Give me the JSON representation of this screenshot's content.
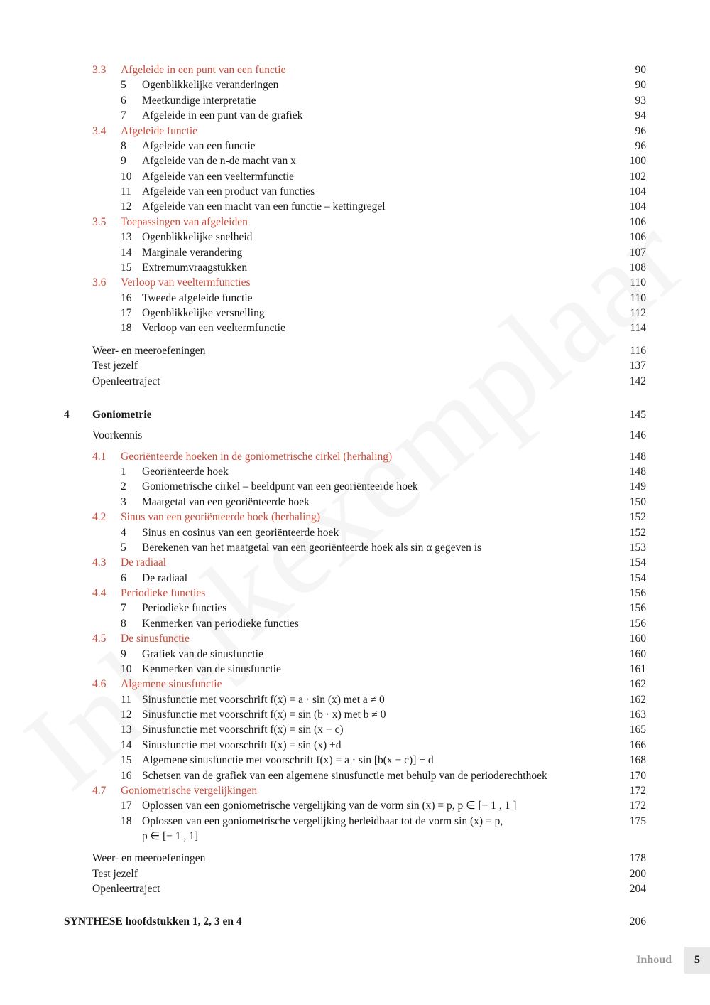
{
  "colors": {
    "section": "#c94b3a",
    "text": "#1a1a1a",
    "footer_label": "#999999",
    "footer_bg": "#e8e8e8",
    "watermark": "rgba(0,0,0,0.04)"
  },
  "watermark": "Inkijkexemplaar",
  "sections_a": [
    {
      "num": "3.3",
      "title": "Afgeleide in een punt van een functie",
      "page": "90",
      "subs": [
        {
          "n": "5",
          "t": "Ogenblikkelijke veranderingen",
          "p": "90"
        },
        {
          "n": "6",
          "t": "Meetkundige interpretatie",
          "p": "93"
        },
        {
          "n": "7",
          "t": "Afgeleide in een punt van de grafiek",
          "p": "94"
        }
      ]
    },
    {
      "num": "3.4",
      "title": "Afgeleide functie",
      "page": "96",
      "subs": [
        {
          "n": "8",
          "t": "Afgeleide van een functie",
          "p": "96"
        },
        {
          "n": "9",
          "t": "Afgeleide van de n-de macht van x",
          "p": "100"
        },
        {
          "n": "10",
          "t": "Afgeleide van een veeltermfunctie",
          "p": "102"
        },
        {
          "n": "11",
          "t": "Afgeleide van een product van functies",
          "p": "104"
        },
        {
          "n": "12",
          "t": "Afgeleide van een macht van een functie – kettingregel",
          "p": "104"
        }
      ]
    },
    {
      "num": "3.5",
      "title": "Toepassingen van afgeleiden",
      "page": "106",
      "subs": [
        {
          "n": "13",
          "t": "Ogenblikkelijke snelheid",
          "p": "106"
        },
        {
          "n": "14",
          "t": "Marginale verandering",
          "p": "107"
        },
        {
          "n": "15",
          "t": "Extremumvraagstukken",
          "p": "108"
        }
      ]
    },
    {
      "num": "3.6",
      "title": "Verloop van veeltermfuncties",
      "page": "110",
      "subs": [
        {
          "n": "16",
          "t": "Tweede afgeleide functie",
          "p": "110"
        },
        {
          "n": "17",
          "t": "Ogenblikkelijke versnelling",
          "p": "112"
        },
        {
          "n": "18",
          "t": "Verloop van een veeltermfunctie",
          "p": "114"
        }
      ]
    }
  ],
  "extras_a": [
    {
      "t": "Weer- en meeroefeningen",
      "p": "116"
    },
    {
      "t": "Test jezelf",
      "p": "137"
    },
    {
      "t": "Openleertraject",
      "p": "142"
    }
  ],
  "chapter4": {
    "num": "4",
    "title": "Goniometrie",
    "page": "145"
  },
  "voorkennis": {
    "t": "Voorkennis",
    "p": "146"
  },
  "sections_b": [
    {
      "num": "4.1",
      "title": "Georiënteerde hoeken in de goniometrische cirkel (herhaling)",
      "page": "148",
      "subs": [
        {
          "n": "1",
          "t": "Georiënteerde hoek",
          "p": "148"
        },
        {
          "n": "2",
          "t": "Goniometrische cirkel – beeldpunt van een georiënteerde hoek",
          "p": "149"
        },
        {
          "n": "3",
          "t": "Maatgetal van een georiënteerde hoek",
          "p": "150"
        }
      ]
    },
    {
      "num": "4.2",
      "title": "Sinus van een georiënteerde hoek (herhaling)",
      "page": "152",
      "subs": [
        {
          "n": "4",
          "t": "Sinus en cosinus van een georiënteerde hoek",
          "p": "152"
        },
        {
          "n": "5",
          "t": "Berekenen van het maatgetal van een georiënteerde hoek als sin α gegeven is",
          "p": "153"
        }
      ]
    },
    {
      "num": "4.3",
      "title": "De radiaal",
      "page": "154",
      "subs": [
        {
          "n": "6",
          "t": "De radiaal",
          "p": "154"
        }
      ]
    },
    {
      "num": "4.4",
      "title": "Periodieke functies",
      "page": "156",
      "subs": [
        {
          "n": "7",
          "t": "Periodieke functies",
          "p": "156"
        },
        {
          "n": "8",
          "t": "Kenmerken van periodieke functies",
          "p": "156"
        }
      ]
    },
    {
      "num": "4.5",
      "title": "De sinusfunctie",
      "page": "160",
      "subs": [
        {
          "n": "9",
          "t": "Grafiek van de sinusfunctie",
          "p": "160"
        },
        {
          "n": "10",
          "t": "Kenmerken van de sinusfunctie",
          "p": "161"
        }
      ]
    },
    {
      "num": "4.6",
      "title": "Algemene sinusfunctie",
      "page": "162",
      "subs": [
        {
          "n": "11",
          "t": "Sinusfunctie met voorschrift f(x) = a · sin (x) met a ≠ 0",
          "p": "162"
        },
        {
          "n": "12",
          "t": "Sinusfunctie met voorschrift f(x) = sin (b · x) met b ≠ 0",
          "p": "163"
        },
        {
          "n": "13",
          "t": "Sinusfunctie met voorschrift f(x) = sin (x − c)",
          "p": "165"
        },
        {
          "n": "14",
          "t": "Sinusfunctie met voorschrift f(x) = sin (x) +d",
          "p": "166"
        },
        {
          "n": "15",
          "t": "Algemene sinusfunctie met voorschrift f(x) = a · sin [b(x − c)] + d",
          "p": "168"
        },
        {
          "n": "16",
          "t": "Schetsen van de grafiek van een algemene sinusfunctie met behulp van de perioderechthoek",
          "p": "170"
        }
      ]
    },
    {
      "num": "4.7",
      "title": "Goniometrische vergelijkingen",
      "page": "172",
      "subs": [
        {
          "n": "17",
          "t": "Oplossen van een goniometrische vergelijking van de vorm sin (x) = p, p ∈ [− 1 , 1 ]",
          "p": "172"
        },
        {
          "n": "18",
          "t": "Oplossen van een goniometrische vergelijking herleidbaar tot de vorm sin (x) = p,",
          "p": "175",
          "cont": "p ∈ [− 1 , 1]"
        }
      ]
    }
  ],
  "extras_b": [
    {
      "t": "Weer- en meeroefeningen",
      "p": "178"
    },
    {
      "t": "Test jezelf",
      "p": "200"
    },
    {
      "t": "Openleertraject",
      "p": "204"
    }
  ],
  "synthese": {
    "bold": "SYNTHESE hoofdstukken 1, 2, 3 en 4",
    "page": "206"
  },
  "footer": {
    "label": "Inhoud",
    "num": "5"
  }
}
